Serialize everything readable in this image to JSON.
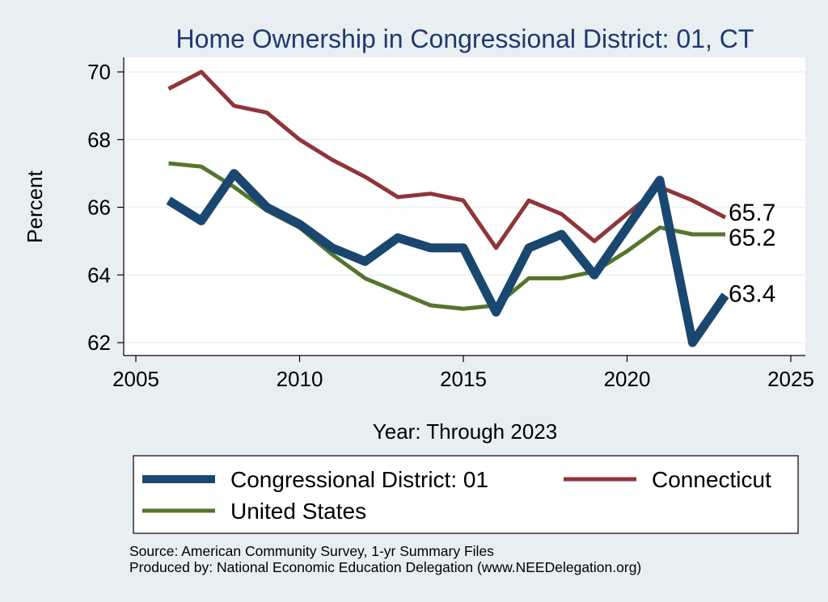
{
  "chart_data": {
    "type": "line",
    "title": "Home Ownership in Congressional District:  01, CT",
    "xlabel": "Year: Through 2023",
    "ylabel": "Percent",
    "xlim": [
      2005,
      2025
    ],
    "ylim": [
      62,
      70
    ],
    "xticks": [
      "2005",
      "2010",
      "2015",
      "2020",
      "2025"
    ],
    "yticks": [
      "62",
      "64",
      "66",
      "68",
      "70"
    ],
    "grid": true,
    "x": [
      2006,
      2007,
      2008,
      2009,
      2010,
      2011,
      2012,
      2013,
      2014,
      2015,
      2016,
      2017,
      2018,
      2019,
      2020,
      2021,
      2022,
      2023
    ],
    "series": [
      {
        "name": "Congressional District:  01",
        "color": "#1a476f",
        "values": [
          66.2,
          65.6,
          67.0,
          66.0,
          65.5,
          64.8,
          64.4,
          65.1,
          64.8,
          64.8,
          62.9,
          64.8,
          65.2,
          64.0,
          65.4,
          66.8,
          62.0,
          63.4
        ],
        "end_label": "63.4"
      },
      {
        "name": "Connecticut",
        "color": "#90353b",
        "values": [
          69.5,
          70.0,
          69.0,
          68.8,
          68.0,
          67.4,
          66.9,
          66.3,
          66.4,
          66.2,
          64.8,
          66.2,
          65.8,
          65.0,
          65.8,
          66.6,
          66.2,
          65.7
        ],
        "end_label": "65.7"
      },
      {
        "name": "United States",
        "color": "#55752f",
        "values": [
          67.3,
          67.2,
          66.6,
          65.9,
          65.4,
          64.6,
          63.9,
          63.5,
          63.1,
          63.0,
          63.1,
          63.9,
          63.9,
          64.1,
          64.7,
          65.4,
          65.2,
          65.2
        ],
        "end_label": "65.2"
      }
    ],
    "legend": {
      "placement": "bottom",
      "entries": [
        "Congressional District:  01",
        "Connecticut",
        "United States"
      ]
    }
  },
  "source_line": "Source: American Community Survey, 1-yr Summary Files",
  "produced_line": "Produced by: National Economic Education Delegation (www.NEEDelegation.org)"
}
